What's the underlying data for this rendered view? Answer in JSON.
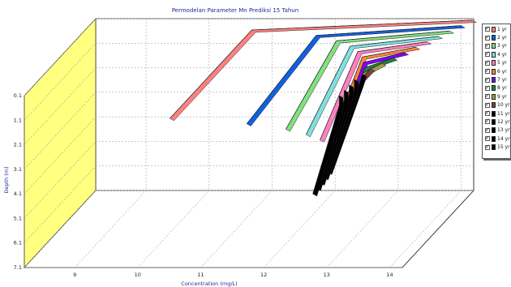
{
  "chart_data": {
    "type": "line",
    "title": "Permodelan Parameter Mn Prediksi 15 Tahun",
    "xlabel": "Concentration (mg/L)",
    "ylabel": "Depth (m)",
    "x_ticks": [
      "9",
      "10",
      "11",
      "12",
      "13",
      "14"
    ],
    "y_ticks": [
      "0.1",
      "1.1",
      "2.1",
      "3.1",
      "4.1",
      "5.1",
      "6.1",
      "7.1"
    ],
    "xlim": [
      8.2,
      14.2
    ],
    "ylim": [
      0.1,
      7.1
    ],
    "y_inverted": true,
    "grid": true,
    "legend_position": "right",
    "back_wall_color": "#ffff80",
    "depths": [
      0.1,
      0.5,
      4.1
    ],
    "series": [
      {
        "name": "1 yr",
        "color": "#ff8080",
        "values": [
          14.2,
          10.7,
          9.4
        ]
      },
      {
        "name": "2 yr",
        "color": "#1060e0",
        "values": [
          14.1,
          11.8,
          10.7
        ]
      },
      {
        "name": "3 yr",
        "color": "#80e080",
        "values": [
          14.0,
          12.2,
          11.4
        ]
      },
      {
        "name": "4 yr",
        "color": "#80e0e0",
        "values": [
          13.9,
          12.5,
          11.8
        ]
      },
      {
        "name": "5 yr",
        "color": "#ff80c0",
        "values": [
          13.8,
          12.7,
          12.1
        ]
      },
      {
        "name": "6 yr",
        "color": "#ff8040",
        "values": [
          13.7,
          12.85,
          12.3
        ]
      },
      {
        "name": "7 yr",
        "color": "#8000ff",
        "values": [
          13.6,
          12.95,
          12.45
        ]
      },
      {
        "name": "8 yr",
        "color": "#208040",
        "values": [
          13.5,
          13.05,
          12.55
        ]
      },
      {
        "name": "9 yr",
        "color": "#a0a040",
        "values": [
          13.4,
          13.1,
          12.6
        ]
      },
      {
        "name": "10 yr",
        "color": "#804040",
        "values": [
          13.3,
          13.15,
          12.65
        ]
      },
      {
        "name": "11 yr",
        "color": "#000000",
        "values": [
          13.25,
          13.2,
          12.7
        ]
      },
      {
        "name": "12 yr",
        "color": "#000000",
        "values": [
          13.2,
          13.2,
          12.72
        ]
      },
      {
        "name": "13 yr",
        "color": "#000000",
        "values": [
          13.2,
          13.2,
          12.74
        ]
      },
      {
        "name": "14 yr",
        "color": "#000000",
        "values": [
          13.2,
          13.2,
          12.76
        ]
      },
      {
        "name": "15 yr",
        "color": "#000000",
        "values": [
          13.2,
          13.2,
          12.78
        ]
      }
    ]
  }
}
